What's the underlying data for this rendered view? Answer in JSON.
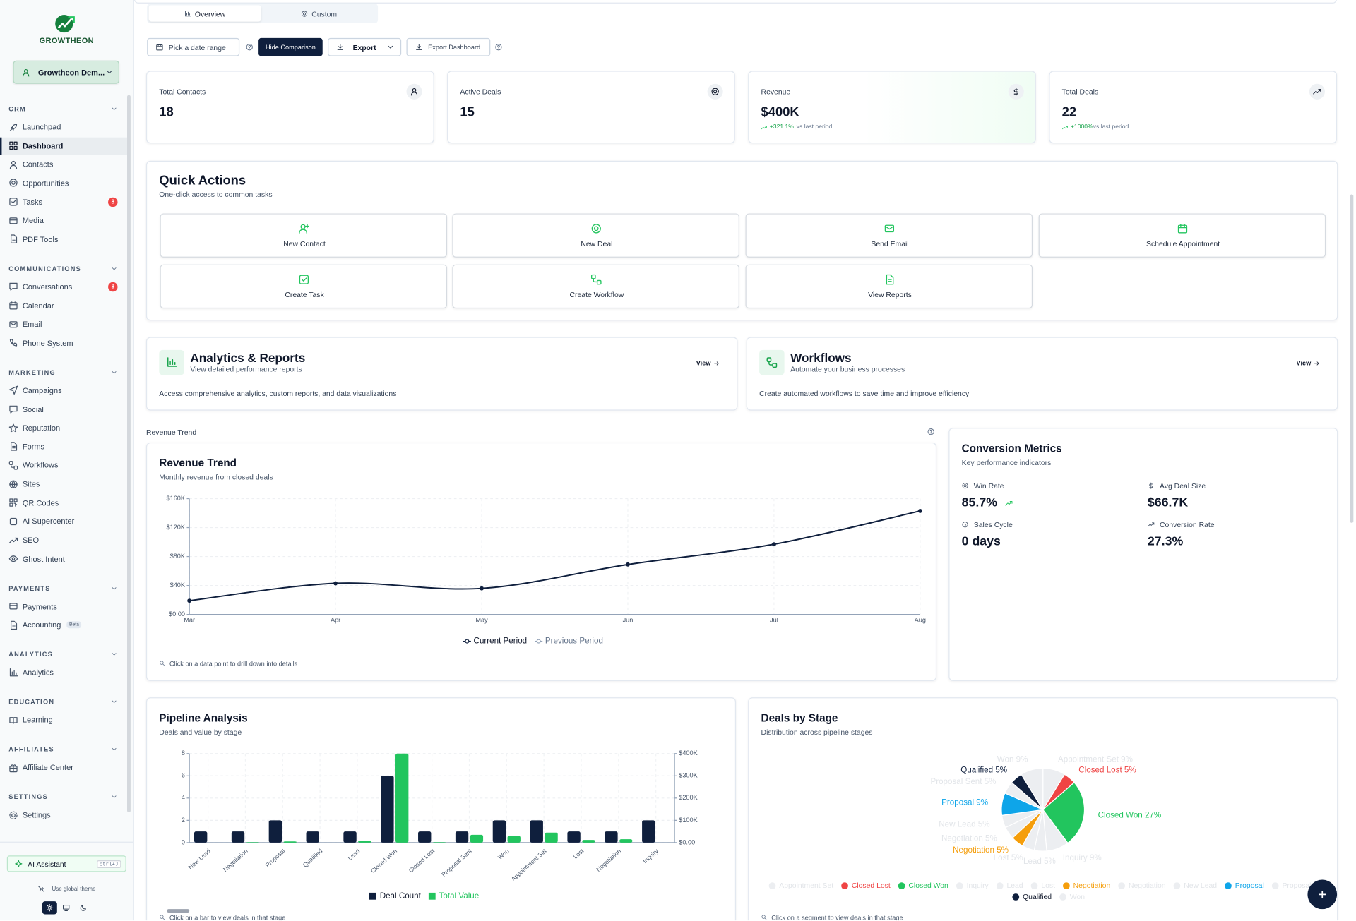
{
  "sidebar": {
    "brand": "GROWTHEON",
    "workspace": "Growtheon Dem...",
    "sections": [
      {
        "title": "CRM",
        "items": [
          {
            "label": "Launchpad"
          },
          {
            "label": "Dashboard",
            "active": true
          },
          {
            "label": "Contacts"
          },
          {
            "label": "Opportunities"
          },
          {
            "label": "Tasks",
            "badge": "8"
          },
          {
            "label": "Media"
          },
          {
            "label": "PDF Tools"
          }
        ]
      },
      {
        "title": "COMMUNICATIONS",
        "items": [
          {
            "label": "Conversations",
            "badge": "8"
          },
          {
            "label": "Calendar"
          },
          {
            "label": "Email"
          },
          {
            "label": "Phone System"
          }
        ]
      },
      {
        "title": "MARKETING",
        "items": [
          {
            "label": "Campaigns"
          },
          {
            "label": "Social"
          },
          {
            "label": "Reputation"
          },
          {
            "label": "Forms"
          },
          {
            "label": "Workflows"
          },
          {
            "label": "Sites"
          },
          {
            "label": "QR Codes"
          },
          {
            "label": "AI Supercenter"
          },
          {
            "label": "SEO"
          },
          {
            "label": "Ghost Intent"
          }
        ]
      },
      {
        "title": "PAYMENTS",
        "items": [
          {
            "label": "Payments"
          },
          {
            "label": "Accounting",
            "tag": "Beta"
          }
        ]
      },
      {
        "title": "ANALYTICS",
        "items": [
          {
            "label": "Analytics"
          }
        ]
      },
      {
        "title": "EDUCATION",
        "items": [
          {
            "label": "Learning"
          }
        ]
      },
      {
        "title": "AFFILIATES",
        "items": [
          {
            "label": "Affiliate Center"
          }
        ]
      },
      {
        "title": "SETTINGS",
        "items": [
          {
            "label": "Settings"
          }
        ]
      }
    ],
    "assistant": "AI Assistant",
    "shortcut": "ctrl+J",
    "theme": "Use global theme"
  },
  "tabs": [
    "Overview",
    "Custom"
  ],
  "toolbar": {
    "date": "Pick a date range",
    "comparison": "Hide Comparison",
    "export": "Export",
    "export_dashboard": "Export Dashboard"
  },
  "stats": [
    {
      "label": "Total Contacts",
      "value": "18"
    },
    {
      "label": "Active Deals",
      "value": "15"
    },
    {
      "label": "Revenue",
      "value": "$400K",
      "change": "+321.1%",
      "period": "vs last period"
    },
    {
      "label": "Total Deals",
      "value": "22",
      "change": "+1000%",
      "period": "vs last period"
    }
  ],
  "quick_actions": {
    "title": "Quick Actions",
    "subtitle": "One-click access to common tasks",
    "actions": [
      "New Contact",
      "New Deal",
      "Send Email",
      "Schedule Appointment",
      "Create Task",
      "Create Workflow",
      "View Reports"
    ]
  },
  "features": [
    {
      "title": "Analytics & Reports",
      "subtitle": "View detailed performance reports",
      "link": "View",
      "description": "Access comprehensive analytics, custom reports, and data visualizations"
    },
    {
      "title": "Workflows",
      "subtitle": "Automate your business processes",
      "link": "View",
      "description": "Create automated workflows to save time and improve efficiency"
    }
  ],
  "section_label": "Revenue Trend",
  "revenue_chart": {
    "type": "line",
    "title": "Revenue Trend",
    "subtitle": "Monthly revenue from closed deals",
    "categories": [
      "Mar",
      "Apr",
      "May",
      "Jun",
      "Jul",
      "Aug"
    ],
    "series": [
      {
        "name": "Current Period",
        "color": "#0f1f3d",
        "values": [
          19000,
          43000,
          36000,
          69000,
          97000,
          143000
        ]
      },
      {
        "name": "Previous Period",
        "color": "#94a3b8",
        "values": [
          null,
          null,
          null,
          null,
          null,
          null
        ]
      }
    ],
    "ylim": [
      0,
      160000
    ],
    "yticks": [
      {
        "value": 0,
        "label": "$0.00"
      },
      {
        "value": 40000,
        "label": "$40K"
      },
      {
        "value": 80000,
        "label": "$80K"
      },
      {
        "value": 120000,
        "label": "$120K"
      },
      {
        "value": 160000,
        "label": "$160K"
      }
    ],
    "grid": true,
    "note": "Click on a data point to drill down into details"
  },
  "conversion": {
    "title": "Conversion Metrics",
    "subtitle": "Key performance indicators",
    "metrics": [
      {
        "label": "Win Rate",
        "value": "85.7%"
      },
      {
        "label": "Avg Deal Size",
        "value": "$66.7K"
      },
      {
        "label": "Sales Cycle",
        "value": "0 days"
      },
      {
        "label": "Conversion Rate",
        "value": "27.3%"
      }
    ]
  },
  "pipeline_chart": {
    "type": "bar",
    "title": "Pipeline Analysis",
    "subtitle": "Deals and value by stage",
    "categories": [
      "New Lead",
      "Negotiation",
      "Proposal",
      "Qualified",
      "Lead",
      "Closed Won",
      "Closed Lost",
      "Proposal Sent",
      "Won",
      "Appointment Set",
      "Lost",
      "Negotiation",
      "Inquiry"
    ],
    "series": [
      {
        "name": "Deal Count",
        "color": "#0f1f3d",
        "values": [
          1,
          1,
          2,
          1,
          1,
          6,
          1,
          1,
          2,
          2,
          1,
          1,
          2
        ]
      },
      {
        "name": "Total Value",
        "color": "#22c55e",
        "axis": "y2",
        "values": [
          0,
          2000,
          5000,
          0,
          8000,
          400000,
          2000,
          35000,
          30000,
          45000,
          12000,
          15000,
          0
        ]
      }
    ],
    "ylim": [
      0,
      8
    ],
    "yticks": [
      0,
      2,
      4,
      6,
      8
    ],
    "y2lim": [
      0,
      400000
    ],
    "y2ticks": [
      {
        "value": 0,
        "label": "$0.00"
      },
      {
        "value": 100000,
        "label": "$100K"
      },
      {
        "value": 200000,
        "label": "$200K"
      },
      {
        "value": 300000,
        "label": "$300K"
      },
      {
        "value": 400000,
        "label": "$400K"
      }
    ],
    "grid": true,
    "note": "Click on a bar to view deals in that stage"
  },
  "stage_chart": {
    "type": "pie",
    "title": "Deals by Stage",
    "subtitle": "Distribution across pipeline stages",
    "categories": [
      "Appointment Set",
      "Closed Lost",
      "Closed Won",
      "Inquiry",
      "Lead",
      "Lost",
      "Negotiation",
      "Negotiation",
      "New Lead",
      "Proposal",
      "Proposal Sent",
      "Qualified",
      "Won"
    ],
    "values": [
      9,
      5,
      27,
      9,
      5,
      5,
      5,
      5,
      5,
      9,
      5,
      5,
      9
    ],
    "value_labels": [
      "Appointment Set 9%",
      "Closed Lost 5%",
      "Closed Won 27%",
      "Inquiry 9%",
      "Lead 5%",
      "Lost 5%",
      "Negotiation 5%",
      "Negotiation 5%",
      "New Lead 5%",
      "Proposal 9%",
      "Proposal Sent 5%",
      "Qualified 5%",
      "Won 9%"
    ],
    "colors": [
      "#eceef1",
      "#ef4444",
      "#22c55e",
      "#eceef1",
      "#eceef1",
      "#eceef1",
      "#f59e0b",
      "#eceef1",
      "#eceef1",
      "#0ea5e9",
      "#eceef1",
      "#0f1f3d",
      "#eceef1"
    ],
    "note": "Click on a segment to view deals in that stage"
  }
}
